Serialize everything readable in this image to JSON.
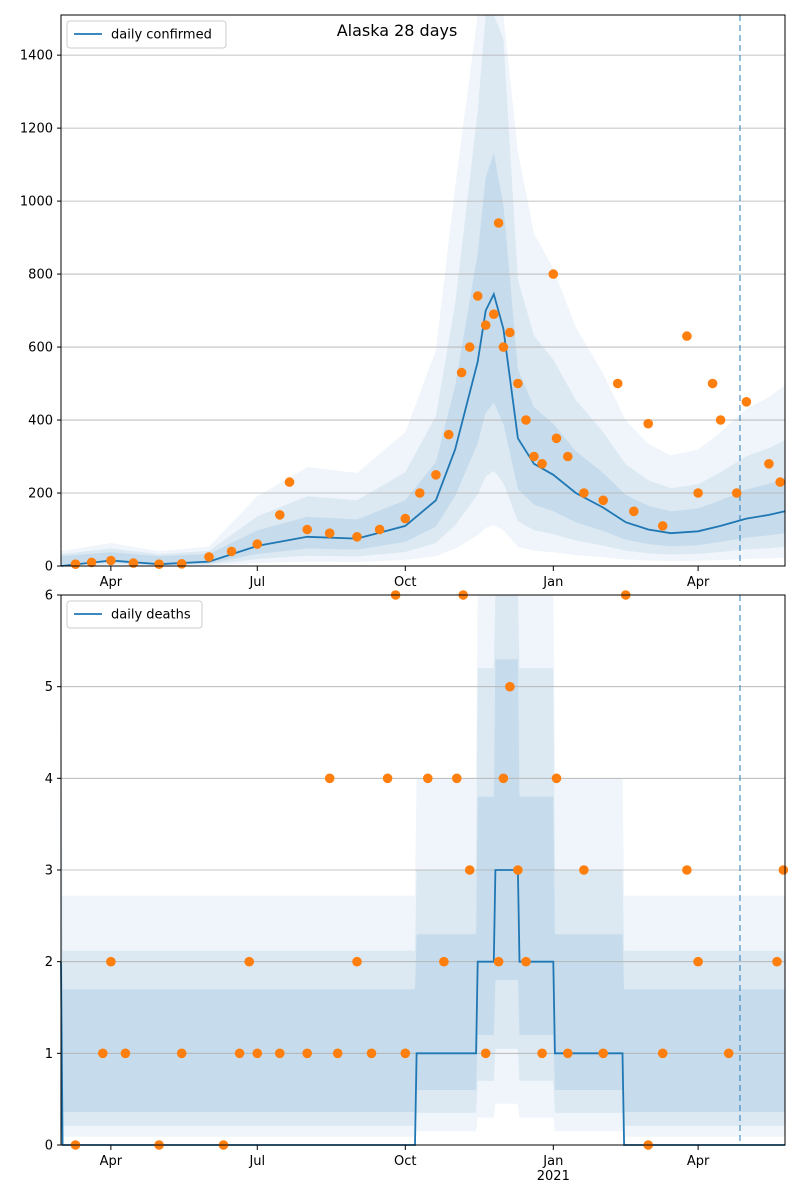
{
  "colors": {
    "model_line": "#1f77b4",
    "observed_points": "#ff7f0e",
    "band": "#1f77b4",
    "grid": "#b0b0b0"
  },
  "chart_data": [
    {
      "type": "line",
      "title": "Alaska 28 days",
      "legend": [
        "daily confirmed"
      ],
      "legend_position": "top-left",
      "grid": "horizontal",
      "x_range": [
        "2020-03-01",
        "2021-05-25"
      ],
      "ylim": [
        0,
        1510
      ],
      "y_ticks": [
        0,
        200,
        400,
        600,
        800,
        1000,
        1200,
        1400
      ],
      "x_ticks": [
        {
          "date": "2020-04-01",
          "label": "Apr"
        },
        {
          "date": "2020-07-01",
          "label": "Jul"
        },
        {
          "date": "2020-10-01",
          "label": "Oct"
        },
        {
          "date": "2021-01-01",
          "label": "Jan"
        },
        {
          "date": "2021-04-01",
          "label": "Apr"
        }
      ],
      "forecast_start": "2021-04-27",
      "series": [
        {
          "name": "daily confirmed",
          "x": [
            "2020-03-01",
            "2020-04-01",
            "2020-05-01",
            "2020-06-01",
            "2020-07-01",
            "2020-08-01",
            "2020-09-01",
            "2020-10-01",
            "2020-10-20",
            "2020-11-01",
            "2020-11-15",
            "2020-11-20",
            "2020-11-25",
            "2020-12-01",
            "2020-12-10",
            "2020-12-20",
            "2021-01-01",
            "2021-01-15",
            "2021-02-01",
            "2021-02-15",
            "2021-03-01",
            "2021-03-15",
            "2021-04-01",
            "2021-04-15",
            "2021-05-01",
            "2021-05-15",
            "2021-05-25"
          ],
          "values": [
            0,
            15,
            5,
            12,
            55,
            80,
            75,
            110,
            180,
            320,
            560,
            700,
            745,
            650,
            350,
            280,
            250,
            200,
            160,
            120,
            100,
            90,
            95,
            110,
            130,
            140,
            150
          ]
        }
      ],
      "observed": {
        "x": [
          "2020-03-10",
          "2020-03-20",
          "2020-04-01",
          "2020-04-15",
          "2020-05-01",
          "2020-05-15",
          "2020-06-01",
          "2020-06-15",
          "2020-07-01",
          "2020-07-15",
          "2020-07-21",
          "2020-08-01",
          "2020-08-15",
          "2020-09-01",
          "2020-09-15",
          "2020-10-01",
          "2020-10-10",
          "2020-10-20",
          "2020-10-28",
          "2020-11-05",
          "2020-11-10",
          "2020-11-15",
          "2020-11-20",
          "2020-11-25",
          "2020-11-28",
          "2020-12-01",
          "2020-12-05",
          "2020-12-10",
          "2020-12-15",
          "2020-12-20",
          "2020-12-25",
          "2021-01-01",
          "2021-01-03",
          "2021-01-10",
          "2021-01-20",
          "2021-02-01",
          "2021-02-10",
          "2021-02-20",
          "2021-03-01",
          "2021-03-10",
          "2021-03-25",
          "2021-04-01",
          "2021-04-10",
          "2021-04-15",
          "2021-04-25",
          "2021-05-01",
          "2021-05-15",
          "2021-05-22"
        ],
        "values": [
          5,
          10,
          15,
          8,
          5,
          6,
          25,
          40,
          60,
          140,
          230,
          100,
          90,
          80,
          100,
          130,
          200,
          250,
          360,
          530,
          600,
          740,
          660,
          690,
          940,
          600,
          640,
          500,
          400,
          300,
          280,
          800,
          350,
          300,
          200,
          180,
          500,
          150,
          390,
          110,
          630,
          200,
          500,
          400,
          200,
          450,
          280,
          230
        ]
      }
    },
    {
      "type": "line",
      "title": "",
      "legend": [
        "daily deaths"
      ],
      "legend_position": "top-left",
      "grid": "horizontal",
      "x_range": [
        "2020-03-01",
        "2021-05-25"
      ],
      "ylim": [
        0,
        6
      ],
      "y_ticks": [
        0,
        1,
        2,
        3,
        4,
        5,
        6
      ],
      "x_ticks": [
        {
          "date": "2020-04-01",
          "label": "Apr"
        },
        {
          "date": "2020-07-01",
          "label": "Jul"
        },
        {
          "date": "2020-10-01",
          "label": "Oct"
        },
        {
          "date": "2021-01-01",
          "label": "Jan\n2021"
        },
        {
          "date": "2021-04-01",
          "label": "Apr"
        }
      ],
      "forecast_start": "2021-04-27",
      "series": [
        {
          "name": "daily deaths",
          "x": [
            "2020-03-01",
            "2020-03-02",
            "2020-10-07",
            "2020-10-08",
            "2020-11-14",
            "2020-11-15",
            "2020-11-25",
            "2020-11-26",
            "2020-12-10",
            "2020-12-11",
            "2020-12-16",
            "2020-12-17",
            "2021-01-01",
            "2021-01-02",
            "2021-02-13",
            "2021-02-14",
            "2021-02-20",
            "2021-02-21",
            "2021-05-25"
          ],
          "values": [
            2,
            0,
            0,
            1,
            1,
            2,
            2,
            3,
            3,
            2,
            2,
            2,
            2,
            1,
            1,
            0,
            0,
            0,
            0
          ]
        }
      ],
      "observed": {
        "x": [
          "2020-03-10",
          "2020-03-27",
          "2020-04-01",
          "2020-04-10",
          "2020-05-01",
          "2020-05-15",
          "2020-06-10",
          "2020-06-20",
          "2020-06-26",
          "2020-07-01",
          "2020-07-15",
          "2020-08-01",
          "2020-08-15",
          "2020-08-20",
          "2020-09-01",
          "2020-09-10",
          "2020-09-20",
          "2020-09-25",
          "2020-10-01",
          "2020-10-15",
          "2020-10-25",
          "2020-11-02",
          "2020-11-06",
          "2020-11-10",
          "2020-11-20",
          "2020-11-28",
          "2020-12-01",
          "2020-12-05",
          "2020-12-10",
          "2020-12-15",
          "2020-12-25",
          "2021-01-03",
          "2021-01-10",
          "2021-01-20",
          "2021-02-01",
          "2021-02-15",
          "2021-03-01",
          "2021-03-10",
          "2021-03-25",
          "2021-04-01",
          "2021-04-20",
          "2021-05-20",
          "2021-05-24"
        ],
        "values": [
          0,
          1,
          2,
          1,
          0,
          1,
          0,
          1,
          2,
          1,
          1,
          1,
          4,
          1,
          2,
          1,
          4,
          6,
          1,
          4,
          2,
          4,
          6,
          3,
          1,
          2,
          4,
          5,
          3,
          2,
          1,
          4,
          1,
          3,
          1,
          6,
          0,
          1,
          3,
          2,
          1,
          2,
          3
        ]
      }
    }
  ]
}
